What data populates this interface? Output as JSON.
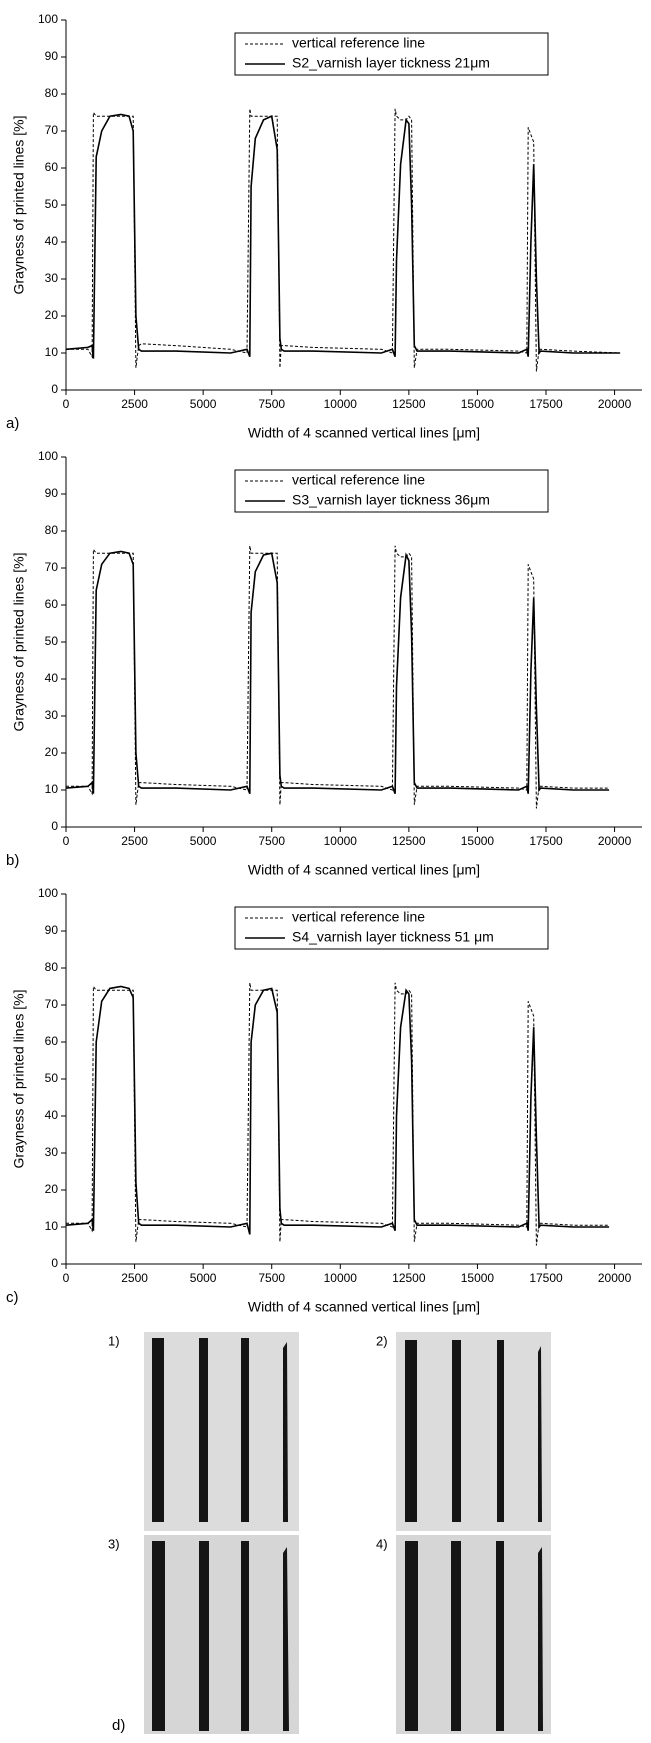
{
  "chart_data": [
    {
      "type": "line",
      "panel": "a)",
      "xlabel": "Width of 4 scanned vertical lines [μm]",
      "ylabel": "Grayness of printed lines [%]",
      "xlim": [
        0,
        21000
      ],
      "ylim": [
        0,
        100
      ],
      "xticks": [
        0,
        2500,
        5000,
        7500,
        10000,
        12500,
        15000,
        17500,
        20000
      ],
      "yticks": [
        0,
        10,
        20,
        30,
        40,
        50,
        60,
        70,
        80,
        90,
        100
      ],
      "x": [
        0,
        800,
        950,
        1000,
        1100,
        1300,
        1600,
        2000,
        2300,
        2450,
        2550,
        2650,
        2750,
        4000,
        6000,
        6600,
        6700,
        6750,
        6900,
        7200,
        7500,
        7700,
        7800,
        7850,
        7950,
        9000,
        11500,
        11900,
        12000,
        12050,
        12200,
        12400,
        12500,
        12600,
        12700,
        12800,
        14000,
        16500,
        16800,
        16850,
        16950,
        17050,
        17150,
        17250,
        17300,
        18500,
        20200
      ],
      "series": [
        {
          "name": "vertical reference line",
          "color": "#000000",
          "line_style": "dashed",
          "values": [
            11,
            11,
            9,
            75,
            74,
            74,
            74,
            74,
            74,
            74,
            6,
            12,
            12.5,
            12,
            11,
            10,
            76,
            74,
            74,
            74,
            74,
            74,
            6,
            12,
            12,
            11.5,
            11,
            10,
            76,
            74,
            73,
            73,
            74,
            73,
            6,
            11,
            11,
            10.5,
            10,
            71,
            69,
            67,
            5,
            11,
            11,
            10.5,
            10
          ]
        },
        {
          "name": "S2_varnish layer tickness 21μm",
          "color": "#000000",
          "line_style": "solid",
          "values": [
            11,
            11.5,
            12,
            8.5,
            63,
            70,
            74,
            74.5,
            74,
            70,
            20,
            11,
            10.5,
            10.5,
            10,
            11,
            9,
            55,
            68,
            73,
            74,
            65,
            14,
            11,
            10.5,
            10.5,
            10,
            11,
            9,
            35,
            61,
            73,
            72,
            50,
            12,
            10.5,
            10.5,
            10,
            11,
            9,
            40,
            61,
            30,
            10,
            10.5,
            10,
            10
          ]
        }
      ]
    },
    {
      "type": "line",
      "panel": "b)",
      "xlabel": "Width of 4 scanned vertical lines [μm]",
      "ylabel": "Grayness of printed lines [%]",
      "xlim": [
        0,
        21000
      ],
      "ylim": [
        0,
        100
      ],
      "xticks": [
        0,
        2500,
        5000,
        7500,
        10000,
        12500,
        15000,
        17500,
        20000
      ],
      "yticks": [
        0,
        10,
        20,
        30,
        40,
        50,
        60,
        70,
        80,
        90,
        100
      ],
      "x": [
        0,
        800,
        950,
        1000,
        1100,
        1300,
        1600,
        2000,
        2300,
        2450,
        2550,
        2650,
        2750,
        4000,
        6000,
        6600,
        6700,
        6750,
        6900,
        7200,
        7500,
        7700,
        7800,
        7850,
        7950,
        9000,
        11500,
        11900,
        12000,
        12050,
        12200,
        12400,
        12500,
        12600,
        12700,
        12800,
        14000,
        16500,
        16800,
        16850,
        16950,
        17050,
        17150,
        17250,
        17300,
        18500,
        19800
      ],
      "series": [
        {
          "name": "vertical reference line",
          "color": "#000000",
          "line_style": "dashed",
          "values": [
            11,
            11,
            9,
            75,
            74,
            74,
            74,
            74,
            74,
            74,
            6,
            12,
            12,
            11.5,
            11,
            10,
            76,
            74,
            74,
            74,
            74,
            74,
            6,
            12,
            12,
            11.5,
            11,
            10,
            76,
            74,
            73,
            73,
            74,
            73,
            6,
            11,
            11,
            10.5,
            10,
            71,
            69,
            67,
            5,
            11,
            11,
            10.5,
            10.5
          ]
        },
        {
          "name": "S3_varnish layer tickness 36μm",
          "color": "#000000",
          "line_style": "solid",
          "values": [
            10.5,
            11,
            12,
            9,
            64,
            71,
            74,
            74.5,
            74,
            71,
            20,
            11,
            10.5,
            10.5,
            10,
            11,
            9,
            58,
            69,
            73.5,
            74,
            66,
            14,
            11,
            10.5,
            10.5,
            10,
            11,
            9,
            38,
            62,
            73.5,
            72,
            52,
            12,
            10.5,
            10.5,
            10,
            11,
            9,
            42,
            62,
            32,
            10,
            10.5,
            10,
            10
          ]
        }
      ]
    },
    {
      "type": "line",
      "panel": "c)",
      "xlabel": "Width of 4 scanned vertical lines [μm]",
      "ylabel": "Grayness of printed lines [%]",
      "xlim": [
        0,
        21000
      ],
      "ylim": [
        0,
        100
      ],
      "xticks": [
        0,
        2500,
        5000,
        7500,
        10000,
        12500,
        15000,
        17500,
        20000
      ],
      "yticks": [
        0,
        10,
        20,
        30,
        40,
        50,
        60,
        70,
        80,
        90,
        100
      ],
      "x": [
        0,
        800,
        950,
        1000,
        1100,
        1300,
        1600,
        2000,
        2300,
        2450,
        2550,
        2650,
        2750,
        4000,
        6000,
        6600,
        6700,
        6750,
        6900,
        7200,
        7500,
        7700,
        7800,
        7850,
        7950,
        9000,
        11500,
        11900,
        12000,
        12050,
        12200,
        12400,
        12500,
        12600,
        12700,
        12800,
        14000,
        16500,
        16800,
        16850,
        16950,
        17050,
        17150,
        17250,
        17300,
        18500,
        19800
      ],
      "series": [
        {
          "name": "vertical reference line",
          "color": "#000000",
          "line_style": "dashed",
          "values": [
            11,
            11,
            9,
            75,
            74,
            74,
            74,
            74,
            74,
            74,
            6,
            12,
            12,
            11.5,
            11,
            10,
            76,
            74,
            74,
            74,
            74,
            74,
            6,
            12,
            12,
            11.5,
            11,
            10,
            76,
            74,
            73,
            73,
            74,
            73,
            6,
            11,
            11,
            10.5,
            10,
            71,
            69,
            67,
            5,
            11,
            11,
            10.5,
            10.5
          ]
        },
        {
          "name": "S4_varnish layer tickness 51 μm",
          "color": "#000000",
          "line_style": "solid",
          "values": [
            10.5,
            11,
            12,
            9,
            60,
            71,
            74.5,
            75,
            74.5,
            72,
            22,
            11,
            10.5,
            10.5,
            10,
            11,
            8,
            60,
            70,
            74,
            74.5,
            68,
            15,
            11,
            10.5,
            10.5,
            10,
            11,
            9,
            40,
            64,
            74,
            73,
            55,
            12,
            10.5,
            10.5,
            10,
            11,
            9,
            45,
            64,
            34,
            10,
            10.5,
            10,
            10
          ]
        }
      ]
    }
  ],
  "panel_d": {
    "label": "d)",
    "images": [
      {
        "label": "1)"
      },
      {
        "label": "2)"
      },
      {
        "label": "3)"
      },
      {
        "label": "4)"
      }
    ]
  }
}
